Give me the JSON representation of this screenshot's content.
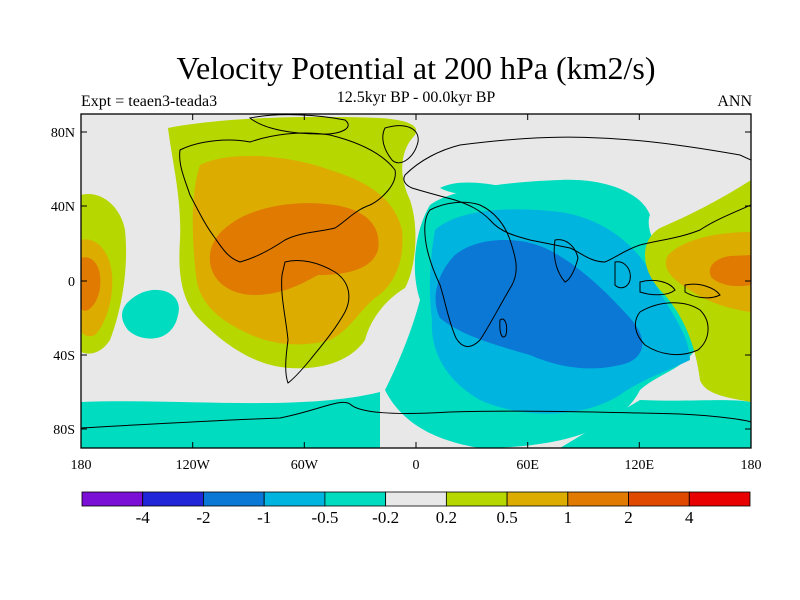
{
  "title": "Velocity Potential at 200 hPa (km2/s)",
  "subtitle": "12.5kyr BP - 00.0kyr BP",
  "left_label": "Expt = teaen3-teada3",
  "right_label": "ANN",
  "axes": {
    "lon_ticks": [
      "180",
      "120W",
      "60W",
      "0",
      "60E",
      "120E",
      "180"
    ],
    "lat_ticks": [
      "80N",
      "40N",
      "0",
      "40S",
      "80S"
    ]
  },
  "colorbar": {
    "colors": [
      "#7b0fd6",
      "#2127d8",
      "#0a78d4",
      "#00b4e0",
      "#00dcc0",
      "#e8e8e8",
      "#b6d700",
      "#dcad00",
      "#e07a00",
      "#e04a00",
      "#e80000"
    ],
    "labels": [
      "-4",
      "-2",
      "-1",
      "-0.5",
      "-0.2",
      "0.2",
      "0.5",
      "1",
      "2",
      "4"
    ]
  },
  "map_data": {
    "type": "filled-contour",
    "projection": "cylindrical-equidistant",
    "lon_range": [
      -180,
      180
    ],
    "lat_range": [
      -90,
      90
    ],
    "field_background": "#e8e8e8",
    "regions": [
      {
        "level": "0.2 to 0.5",
        "color": "#b6d700"
      },
      {
        "level": "0.5 to 1",
        "color": "#dcad00"
      },
      {
        "level": "1 to 2",
        "color": "#e07a00"
      },
      {
        "level": "-0.5 to -0.2",
        "color": "#00dcc0"
      },
      {
        "level": "-1 to -0.5",
        "color": "#00b4e0"
      },
      {
        "level": "-2 to -1",
        "color": "#0a78d4"
      }
    ]
  }
}
